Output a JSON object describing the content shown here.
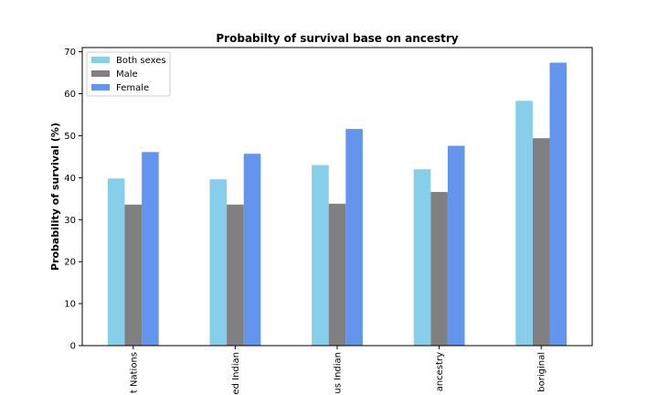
{
  "chart_data": {
    "type": "bar",
    "title": "Probabilty of survival base on ancestry",
    "xlabel": "",
    "ylabel": "Probability of survival (%)",
    "ylim": [
      0,
      71
    ],
    "yticks": [
      0,
      10,
      20,
      30,
      40,
      50,
      60,
      70
    ],
    "categories": [
      "t Nations",
      "ed Indian",
      "us Indian",
      "ancestry",
      "boriginal"
    ],
    "series": [
      {
        "name": "Both sexes",
        "color": "#87ceeb",
        "values": [
          39.8,
          39.6,
          43.0,
          42.0,
          58.3
        ]
      },
      {
        "name": "Male",
        "color": "#808080",
        "values": [
          33.6,
          33.6,
          33.8,
          36.6,
          49.4
        ]
      },
      {
        "name": "Female",
        "color": "#6495ed",
        "values": [
          46.1,
          45.7,
          51.6,
          47.6,
          67.4
        ]
      }
    ],
    "legend_position": "top-left",
    "grid": false
  }
}
